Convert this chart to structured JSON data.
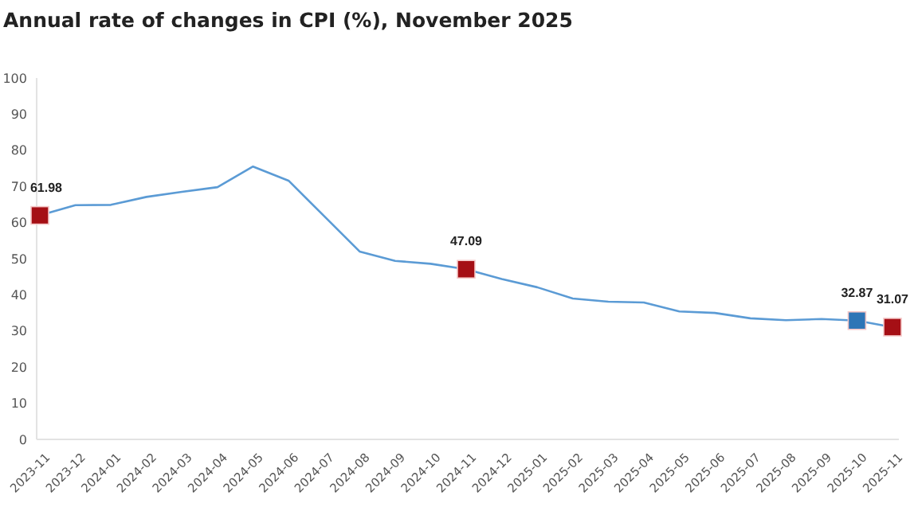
{
  "chart_data": {
    "type": "line",
    "title": "Annual rate of changes in CPI (%), November 2025",
    "categories": [
      "2023-11",
      "2023-12",
      "2024-01",
      "2024-02",
      "2024-03",
      "2024-04",
      "2024-05",
      "2024-06",
      "2024-07",
      "2024-08",
      "2024-09",
      "2024-10",
      "2024-11",
      "2024-12",
      "2025-01",
      "2025-02",
      "2025-03",
      "2025-04",
      "2025-05",
      "2025-06",
      "2025-07",
      "2025-08",
      "2025-09",
      "2025-10",
      "2025-11"
    ],
    "series": [
      {
        "color": "#5b9bd5",
        "values": [
          61.98,
          64.8,
          64.9,
          67.1,
          68.5,
          69.8,
          75.5,
          71.6,
          61.8,
          52,
          49.4,
          48.6,
          47.09,
          44.4,
          42.1,
          39,
          38.1,
          37.9,
          35.4,
          35,
          33.5,
          33,
          33.3,
          32.87,
          31.07
        ]
      },
      {
        "type": "scatter",
        "marker": "square",
        "color": "#a50f15",
        "values": [
          61.98,
          null,
          null,
          null,
          null,
          null,
          null,
          null,
          null,
          null,
          null,
          null,
          47.09,
          null,
          null,
          null,
          null,
          null,
          null,
          null,
          null,
          null,
          null,
          null,
          31.07
        ],
        "value_labels": [
          "61.98",
          null,
          null,
          null,
          null,
          null,
          null,
          null,
          null,
          null,
          null,
          null,
          "47.09",
          null,
          null,
          null,
          null,
          null,
          null,
          null,
          null,
          null,
          null,
          null,
          "31.07"
        ]
      },
      {
        "type": "scatter",
        "marker": "square",
        "color": "#2e75b6",
        "values": [
          null,
          null,
          null,
          null,
          null,
          null,
          null,
          null,
          null,
          null,
          null,
          null,
          null,
          null,
          null,
          null,
          null,
          null,
          null,
          null,
          null,
          null,
          null,
          32.87,
          null
        ],
        "value_labels": [
          null,
          null,
          null,
          null,
          null,
          null,
          null,
          null,
          null,
          null,
          null,
          null,
          null,
          null,
          null,
          null,
          null,
          null,
          null,
          null,
          null,
          null,
          null,
          "32.87",
          null
        ]
      }
    ],
    "ylim": [
      0,
      100
    ],
    "yticks": [
      0,
      10,
      20,
      30,
      40,
      50,
      60,
      70,
      80,
      90,
      100
    ],
    "grid": false
  }
}
